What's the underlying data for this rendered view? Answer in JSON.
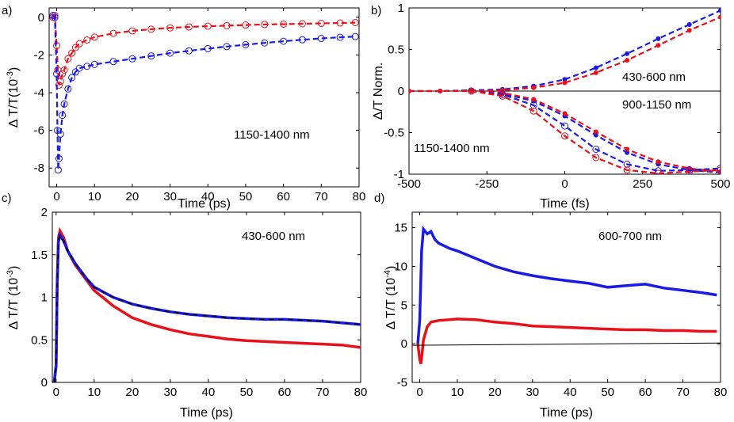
{
  "figure": {
    "panel_labels": [
      "a)",
      "b)",
      "c)",
      "d)"
    ]
  },
  "chart_data": [
    {
      "panel": "a)",
      "type": "scatter",
      "xlabel": "Time (ps)",
      "ylabel": "Δ T/T(10",
      "ylabel_exp": "-3",
      "xlim": [
        -2,
        80
      ],
      "ylim": [
        -9,
        0.5
      ],
      "xticks": [
        0,
        10,
        20,
        30,
        40,
        50,
        60,
        70,
        80
      ],
      "yticks": [
        0,
        -2,
        -4,
        -6,
        -8
      ],
      "annotations": [
        "1150-1400 nm"
      ],
      "series": [
        {
          "name": "red",
          "color": "#e8101a",
          "marker": "open-circle",
          "fit": "dashed",
          "x": [
            -1,
            -0.5,
            0,
            0.3,
            0.6,
            1,
            1.5,
            2,
            3,
            4,
            5,
            6,
            8,
            10,
            15,
            20,
            25,
            30,
            35,
            40,
            45,
            50,
            55,
            60,
            65,
            70,
            75,
            79
          ],
          "y": [
            0,
            0.1,
            -1.5,
            -2.8,
            -3.6,
            -3.4,
            -3.0,
            -2.8,
            -2.2,
            -1.9,
            -1.6,
            -1.4,
            -1.2,
            -1.05,
            -0.85,
            -0.72,
            -0.63,
            -0.56,
            -0.51,
            -0.47,
            -0.44,
            -0.41,
            -0.38,
            -0.36,
            -0.34,
            -0.32,
            -0.3,
            -0.28
          ]
        },
        {
          "name": "blue",
          "color": "#1a1ae6",
          "marker": "open-circle",
          "fit": "dashed",
          "x": [
            -1,
            -0.5,
            0,
            0.2,
            0.4,
            0.6,
            1,
            1.5,
            2,
            3,
            4,
            5,
            6,
            8,
            10,
            15,
            20,
            25,
            30,
            35,
            40,
            45,
            50,
            55,
            60,
            65,
            70,
            75,
            79
          ],
          "y": [
            0.1,
            0,
            -3,
            -6,
            -8.1,
            -7.5,
            -6.2,
            -5.2,
            -4.6,
            -3.8,
            -3.2,
            -2.9,
            -2.7,
            -2.6,
            -2.5,
            -2.35,
            -2.2,
            -2.05,
            -1.9,
            -1.78,
            -1.66,
            -1.55,
            -1.45,
            -1.36,
            -1.27,
            -1.19,
            -1.12,
            -1.06,
            -1.02
          ]
        }
      ]
    },
    {
      "panel": "b)",
      "type": "line",
      "xlabel": "Time (fs)",
      "ylabel": "Δ/T Norm.",
      "xlim": [
        -500,
        500
      ],
      "ylim": [
        -1,
        1
      ],
      "xticks": [
        -500,
        -250,
        0,
        250,
        500
      ],
      "yticks": [
        1,
        0.5,
        0,
        -0.5,
        -1
      ],
      "annotations": [
        "430-600 nm",
        "900-1150 nm",
        "1150-1400 nm"
      ],
      "series": [
        {
          "name": "blue 430-600 nm",
          "color": "#1a1ae6",
          "marker": "filled-dot",
          "x": [
            -500,
            -400,
            -300,
            -200,
            -100,
            0,
            100,
            200,
            300,
            400,
            500
          ],
          "y": [
            0,
            0,
            0.01,
            0.02,
            0.06,
            0.14,
            0.28,
            0.45,
            0.63,
            0.8,
            0.97
          ]
        },
        {
          "name": "red 430-600 nm",
          "color": "#e8101a",
          "marker": "filled-dot",
          "x": [
            -500,
            -400,
            -300,
            -200,
            -100,
            0,
            100,
            200,
            300,
            400,
            500
          ],
          "y": [
            0,
            0,
            0,
            0.01,
            0.04,
            0.1,
            0.22,
            0.37,
            0.55,
            0.73,
            0.89
          ]
        },
        {
          "name": "blue 900-1150 nm",
          "color": "#1a1ae6",
          "marker": "filled-dot",
          "x": [
            -300,
            -200,
            -100,
            0,
            100,
            200,
            300,
            400,
            500
          ],
          "y": [
            0,
            -0.03,
            -0.12,
            -0.3,
            -0.53,
            -0.74,
            -0.88,
            -0.95,
            -0.98
          ]
        },
        {
          "name": "red 900-1150 nm",
          "color": "#e8101a",
          "marker": "filled-dot",
          "x": [
            -300,
            -200,
            -100,
            0,
            100,
            200,
            300,
            400,
            500
          ],
          "y": [
            0,
            -0.02,
            -0.1,
            -0.27,
            -0.49,
            -0.7,
            -0.85,
            -0.93,
            -0.97
          ]
        },
        {
          "name": "blue 1150-1400 nm",
          "color": "#1a1ae6",
          "marker": "open-circle",
          "x": [
            -300,
            -200,
            -100,
            0,
            100,
            200,
            300,
            400,
            500
          ],
          "y": [
            0,
            -0.04,
            -0.17,
            -0.42,
            -0.7,
            -0.88,
            -0.96,
            -0.95,
            -0.93
          ]
        },
        {
          "name": "red 1150-1400 nm",
          "color": "#e8101a",
          "marker": "open-circle",
          "x": [
            -300,
            -200,
            -100,
            0,
            100,
            200,
            300,
            400,
            500
          ],
          "y": [
            0,
            -0.06,
            -0.24,
            -0.54,
            -0.8,
            -0.95,
            -0.99,
            -0.97,
            -0.95
          ]
        }
      ]
    },
    {
      "panel": "c)",
      "type": "line",
      "xlabel": "Time (ps)",
      "ylabel": "Δ T/T (10",
      "ylabel_exp": "-3",
      "xlim": [
        -1,
        80
      ],
      "ylim": [
        0,
        2
      ],
      "xticks": [
        0,
        10,
        20,
        30,
        40,
        50,
        60,
        70,
        80
      ],
      "yticks": [
        0,
        0.5,
        1,
        1.5,
        2
      ],
      "annotations": [
        "430-600 nm"
      ],
      "series": [
        {
          "name": "red",
          "color": "#e8101a",
          "x": [
            -0.5,
            0,
            0.3,
            0.6,
            1,
            2,
            3,
            5,
            8,
            10,
            15,
            20,
            25,
            30,
            35,
            40,
            45,
            50,
            55,
            60,
            65,
            70,
            75,
            80
          ],
          "y": [
            0,
            0.2,
            1.2,
            1.7,
            1.78,
            1.7,
            1.55,
            1.38,
            1.2,
            1.08,
            0.9,
            0.76,
            0.68,
            0.62,
            0.57,
            0.54,
            0.51,
            0.49,
            0.48,
            0.47,
            0.46,
            0.45,
            0.44,
            0.41
          ]
        },
        {
          "name": "blue",
          "color": "#1a1ae6",
          "fit": "dashed-black",
          "x": [
            -0.5,
            0,
            0.3,
            0.6,
            1,
            2,
            3,
            5,
            8,
            10,
            15,
            20,
            25,
            30,
            35,
            40,
            45,
            50,
            55,
            60,
            65,
            70,
            75,
            80
          ],
          "y": [
            0,
            0.2,
            1.15,
            1.65,
            1.73,
            1.66,
            1.55,
            1.4,
            1.22,
            1.12,
            1.0,
            0.92,
            0.87,
            0.83,
            0.8,
            0.78,
            0.76,
            0.75,
            0.74,
            0.74,
            0.73,
            0.72,
            0.7,
            0.68
          ]
        }
      ]
    },
    {
      "panel": "d)",
      "type": "line",
      "xlabel": "Time (ps)",
      "ylabel": "Δ T/T (10",
      "ylabel_exp": "-4",
      "xlim": [
        -2,
        80
      ],
      "ylim": [
        -5,
        17
      ],
      "xticks": [
        0,
        10,
        20,
        30,
        40,
        50,
        60,
        70,
        80
      ],
      "yticks": [
        -5,
        0,
        5,
        10,
        15
      ],
      "annotations": [
        "600-700 nm"
      ],
      "series": [
        {
          "name": "blue",
          "color": "#1a1ae6",
          "x": [
            -0.5,
            0,
            0.5,
            1,
            2,
            3,
            4,
            5,
            8,
            10,
            15,
            20,
            25,
            30,
            35,
            40,
            45,
            50,
            55,
            60,
            65,
            70,
            75,
            79
          ],
          "y": [
            0,
            3,
            12,
            14.8,
            14.2,
            14.5,
            13.5,
            13,
            12.3,
            12,
            11,
            10,
            9.3,
            8.8,
            8.4,
            8.1,
            7.8,
            7.3,
            7.5,
            7.7,
            7.2,
            6.9,
            6.6,
            6.3
          ]
        },
        {
          "name": "red",
          "color": "#e8101a",
          "x": [
            -0.5,
            0,
            0.3,
            0.6,
            1,
            2,
            3,
            5,
            8,
            10,
            15,
            20,
            25,
            30,
            35,
            40,
            45,
            50,
            55,
            60,
            65,
            70,
            75,
            79
          ],
          "y": [
            0,
            -2,
            -2.6,
            -1.5,
            0.5,
            2.2,
            2.8,
            3,
            3.1,
            3.2,
            3.1,
            2.8,
            2.6,
            2.3,
            2.2,
            2.1,
            2,
            1.9,
            1.8,
            1.8,
            1.7,
            1.7,
            1.6,
            1.6
          ]
        },
        {
          "name": "baseline",
          "color": "#000000",
          "x": [
            -2,
            80
          ],
          "y": [
            -0.2,
            0.1
          ]
        }
      ]
    }
  ]
}
